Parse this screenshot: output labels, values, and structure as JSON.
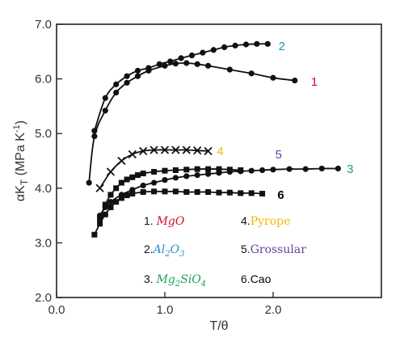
{
  "chart_data": {
    "type": "line",
    "xlabel": "T/θ",
    "ylabel": "αK_T (MPa K⁻¹)",
    "ylabel_parts": {
      "main": "αK",
      "sub": "T",
      "unit_open": " (MPa K",
      "unit_sup": "-1",
      "unit_close": ")"
    },
    "xlim": [
      0.0,
      3.0
    ],
    "ylim": [
      2.0,
      7.0
    ],
    "xticks": [
      "0.0",
      "1.0",
      "2.0"
    ],
    "yticks": [
      "2.0",
      "3.0",
      "4.0",
      "5.0",
      "6.0",
      "7.0"
    ],
    "series": [
      {
        "number": "1",
        "color": "#d0112b",
        "marker": "circle",
        "x": [
          0.3,
          0.35,
          0.45,
          0.55,
          0.65,
          0.75,
          0.85,
          1.0,
          1.1,
          1.2,
          1.3,
          1.4,
          1.6,
          1.8,
          2.0,
          2.2
        ],
        "y": [
          4.1,
          4.95,
          5.42,
          5.75,
          5.93,
          6.05,
          6.15,
          6.24,
          6.28,
          6.29,
          6.27,
          6.24,
          6.17,
          6.1,
          6.02,
          5.97
        ]
      },
      {
        "number": "2",
        "color": "#2a8fc4",
        "marker": "circle",
        "x": [
          0.35,
          0.45,
          0.55,
          0.65,
          0.75,
          0.85,
          0.95,
          1.05,
          1.15,
          1.25,
          1.35,
          1.45,
          1.55,
          1.65,
          1.75,
          1.85,
          1.95
        ],
        "y": [
          5.05,
          5.65,
          5.9,
          6.05,
          6.15,
          6.2,
          6.27,
          6.32,
          6.38,
          6.43,
          6.48,
          6.53,
          6.58,
          6.61,
          6.63,
          6.64,
          6.64
        ]
      },
      {
        "number": "3",
        "color": "#1aa35a",
        "marker": "circle",
        "x": [
          0.4,
          0.45,
          0.5,
          0.6,
          0.7,
          0.8,
          0.9,
          1.0,
          1.1,
          1.2,
          1.3,
          1.4,
          1.5,
          1.6,
          1.7,
          1.8,
          1.9,
          2.0,
          2.15,
          2.3,
          2.45,
          2.6
        ],
        "y": [
          3.5,
          3.65,
          3.75,
          3.88,
          3.97,
          4.05,
          4.1,
          4.15,
          4.19,
          4.22,
          4.24,
          4.26,
          4.28,
          4.3,
          4.31,
          4.32,
          4.33,
          4.34,
          4.35,
          4.35,
          4.36,
          4.36
        ]
      },
      {
        "number": "4",
        "color": "#f2b705",
        "marker": "x",
        "x": [
          0.4,
          0.5,
          0.6,
          0.7,
          0.8,
          0.9,
          1.0,
          1.1,
          1.2,
          1.3,
          1.4
        ],
        "y": [
          4.0,
          4.3,
          4.5,
          4.62,
          4.68,
          4.7,
          4.7,
          4.7,
          4.7,
          4.69,
          4.68
        ]
      },
      {
        "number": "5",
        "color": "#6b3fa0",
        "marker": "square",
        "x": [
          0.4,
          0.45,
          0.5,
          0.55,
          0.6,
          0.65,
          0.7,
          0.75,
          0.8,
          0.9,
          1.0,
          1.1,
          1.2,
          1.3,
          1.4,
          1.5,
          1.6,
          1.7
        ],
        "y": [
          3.45,
          3.7,
          3.88,
          4.0,
          4.1,
          4.16,
          4.2,
          4.24,
          4.27,
          4.3,
          4.32,
          4.33,
          4.34,
          4.35,
          4.35,
          4.35,
          4.34,
          4.33
        ]
      },
      {
        "number": "6",
        "color": "#000000",
        "marker": "square",
        "x": [
          0.35,
          0.4,
          0.45,
          0.5,
          0.55,
          0.6,
          0.65,
          0.7,
          0.8,
          0.9,
          1.0,
          1.1,
          1.2,
          1.3,
          1.4,
          1.5,
          1.6,
          1.7,
          1.8,
          1.9
        ],
        "y": [
          3.15,
          3.35,
          3.52,
          3.65,
          3.75,
          3.82,
          3.87,
          3.9,
          3.93,
          3.94,
          3.94,
          3.94,
          3.93,
          3.93,
          3.93,
          3.92,
          3.92,
          3.91,
          3.91,
          3.9
        ]
      }
    ],
    "legend": {
      "placement": "inside-bottom",
      "entries": [
        {
          "num": "1. ",
          "formula": [
            [
              "MgO",
              "n"
            ]
          ],
          "color": "#d0112b",
          "style": "serif-italic"
        },
        {
          "num": "4.",
          "formula": [
            [
              "Pyrope",
              "n"
            ]
          ],
          "color": "#f2b705",
          "style": "serif"
        },
        {
          "num": "2.",
          "formula": [
            [
              "Al",
              "n"
            ],
            [
              "2",
              "sub"
            ],
            [
              "O",
              "n"
            ],
            [
              "3",
              "sub"
            ]
          ],
          "color": "#2a8fc4",
          "style": "serif-italic"
        },
        {
          "num": "5.",
          "formula": [
            [
              "Grossular",
              "n"
            ]
          ],
          "color": "#6b3fa0",
          "style": "serif"
        },
        {
          "num": "3. ",
          "formula": [
            [
              "Mg",
              "n"
            ],
            [
              "2",
              "sub"
            ],
            [
              "SiO",
              "n"
            ],
            [
              "4",
              "sub"
            ]
          ],
          "color": "#1aa35a",
          "style": "serif-italic"
        },
        {
          "num": "6.",
          "formula": [
            [
              "Cao",
              "n"
            ]
          ],
          "color": "#000000",
          "style": "sans"
        }
      ]
    }
  }
}
